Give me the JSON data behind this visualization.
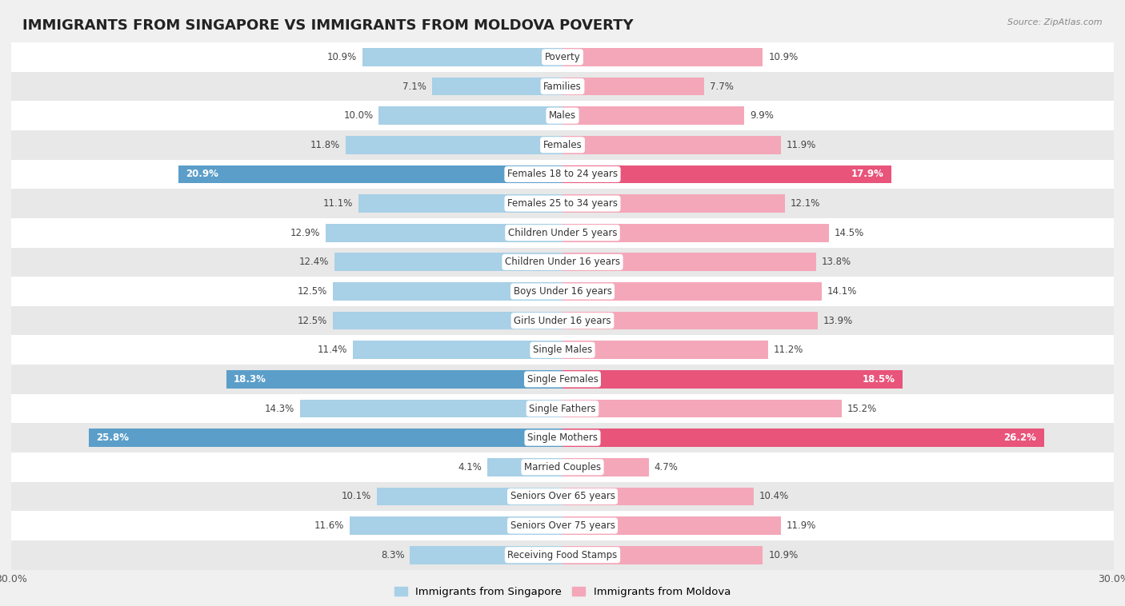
{
  "title": "IMMIGRANTS FROM SINGAPORE VS IMMIGRANTS FROM MOLDOVA POVERTY",
  "source": "Source: ZipAtlas.com",
  "categories": [
    "Poverty",
    "Families",
    "Males",
    "Females",
    "Females 18 to 24 years",
    "Females 25 to 34 years",
    "Children Under 5 years",
    "Children Under 16 years",
    "Boys Under 16 years",
    "Girls Under 16 years",
    "Single Males",
    "Single Females",
    "Single Fathers",
    "Single Mothers",
    "Married Couples",
    "Seniors Over 65 years",
    "Seniors Over 75 years",
    "Receiving Food Stamps"
  ],
  "singapore_values": [
    10.9,
    7.1,
    10.0,
    11.8,
    20.9,
    11.1,
    12.9,
    12.4,
    12.5,
    12.5,
    11.4,
    18.3,
    14.3,
    25.8,
    4.1,
    10.1,
    11.6,
    8.3
  ],
  "moldova_values": [
    10.9,
    7.7,
    9.9,
    11.9,
    17.9,
    12.1,
    14.5,
    13.8,
    14.1,
    13.9,
    11.2,
    18.5,
    15.2,
    26.2,
    4.7,
    10.4,
    11.9,
    10.9
  ],
  "singapore_color": "#A8D0E6",
  "moldova_color": "#F4A7B9",
  "singapore_label": "Immigrants from Singapore",
  "moldova_label": "Immigrants from Moldova",
  "axis_max": 30.0,
  "background_color": "#f0f0f0",
  "row_color_even": "#ffffff",
  "row_color_odd": "#e8e8e8",
  "highlight_indices": [
    4,
    11,
    13
  ],
  "highlight_singapore_color": "#5B9EC9",
  "highlight_moldova_color": "#E8547A",
  "title_fontsize": 13,
  "label_fontsize": 8.5,
  "value_fontsize": 8.5,
  "legend_fontsize": 9.5
}
